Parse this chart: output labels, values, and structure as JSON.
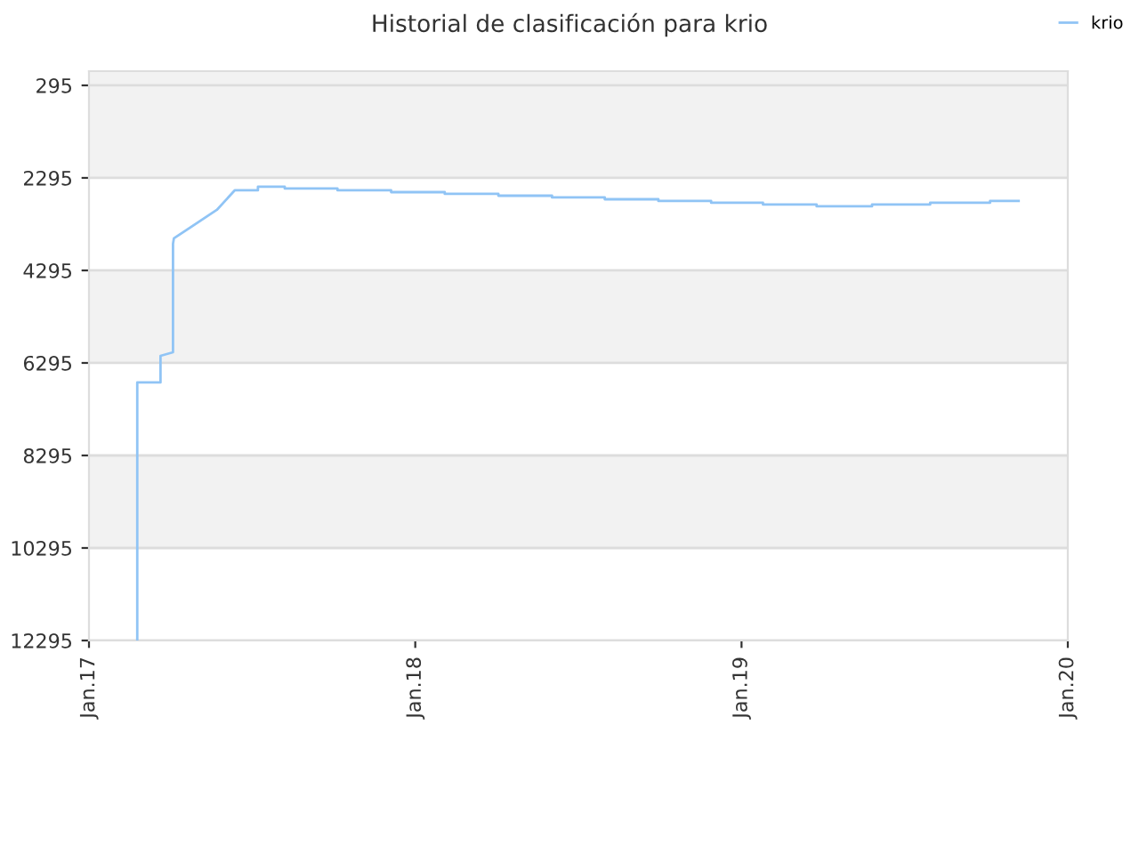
{
  "chart_data": {
    "type": "line",
    "title": "Historial de clasificación para krio",
    "x": [
      "2017-02-24",
      "2017-02-24",
      "2017-03-22",
      "2017-03-22",
      "2017-04-05",
      "2017-04-05",
      "2017-04-06",
      "2017-05-24",
      "2017-06-13",
      "2017-07-09",
      "2017-07-09",
      "2017-08-08",
      "2017-08-08",
      "2017-10-06",
      "2017-10-06",
      "2017-12-05",
      "2017-12-05",
      "2018-02-03",
      "2018-02-03",
      "2018-04-04",
      "2018-04-04",
      "2018-06-03",
      "2018-06-03",
      "2018-08-01",
      "2018-08-01",
      "2018-09-30",
      "2018-09-30",
      "2018-11-28",
      "2018-11-28",
      "2019-01-25",
      "2019-01-25",
      "2019-03-26",
      "2019-03-26",
      "2019-05-27",
      "2019-05-27",
      "2019-07-31",
      "2019-07-31",
      "2019-10-06",
      "2019-10-06",
      "2019-11-07"
    ],
    "series": [
      {
        "name": "krio",
        "color": "#90c4f5",
        "values": [
          12295,
          6718,
          6718,
          6141,
          6064,
          3718,
          3602,
          2987,
          2564,
          2564,
          2487,
          2487,
          2526,
          2526,
          2564,
          2564,
          2603,
          2603,
          2641,
          2641,
          2680,
          2680,
          2718,
          2718,
          2757,
          2757,
          2795,
          2795,
          2833,
          2833,
          2872,
          2872,
          2910,
          2910,
          2872,
          2872,
          2833,
          2833,
          2795,
          2795
        ]
      }
    ],
    "ylim": [
      12295,
      -12
    ],
    "yticks": [
      295,
      2295,
      4295,
      6295,
      8295,
      10295,
      12295
    ],
    "xlim": [
      "2017-01-01",
      "2020-01-01"
    ],
    "xticks": [
      {
        "value": "2017-01-01",
        "label": "Jan.17"
      },
      {
        "value": "2018-01-01",
        "label": "Jan.18"
      },
      {
        "value": "2019-01-01",
        "label": "Jan.19"
      },
      {
        "value": "2020-01-01",
        "label": "Jan.20"
      }
    ],
    "bands": [
      {
        "axis": "y",
        "from": -12,
        "to": 2295,
        "color": "#f2f2f2"
      },
      {
        "axis": "y",
        "from": 4295,
        "to": 6295,
        "color": "#f2f2f2"
      },
      {
        "axis": "y",
        "from": 8295,
        "to": 10295,
        "color": "#f2f2f2"
      }
    ],
    "grid": "y",
    "legend": "top right",
    "marker": "none",
    "line_style": "solid"
  }
}
